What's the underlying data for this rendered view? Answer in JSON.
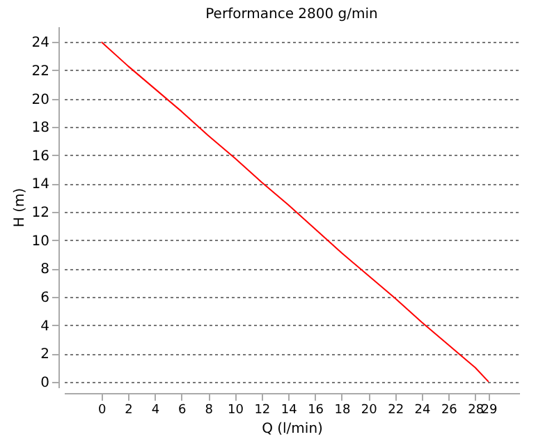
{
  "chart_data": {
    "type": "line",
    "title": "Performance  2800 g/min",
    "xlabel": "Q (l/min)",
    "ylabel": "H (m)",
    "x": [
      0,
      2,
      4,
      6,
      8,
      10,
      12,
      14,
      16,
      18,
      20,
      22,
      24,
      26,
      28,
      29
    ],
    "series": [
      {
        "color": "#ff0000",
        "values": [
          24,
          22.3,
          20.7,
          19.1,
          17.4,
          15.8,
          14.1,
          12.5,
          10.8,
          9.1,
          7.5,
          5.9,
          4.2,
          2.6,
          1.0,
          0
        ]
      }
    ],
    "xlim": [
      -2.8,
      31.3
    ],
    "xticks": [
      0,
      2,
      4,
      6,
      8,
      10,
      12,
      14,
      16,
      18,
      20,
      22,
      24,
      26,
      28,
      29
    ],
    "ylim": [
      -0.4,
      25.1
    ],
    "yticks": [
      0,
      2,
      4,
      6,
      8,
      10,
      12,
      14,
      16,
      18,
      20,
      22,
      24
    ],
    "grid": "y"
  }
}
